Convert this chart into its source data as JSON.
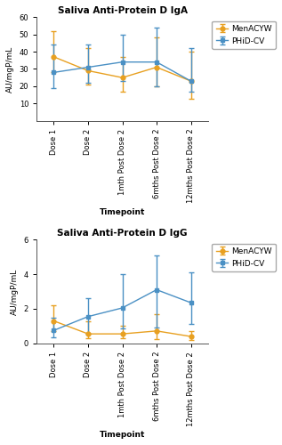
{
  "iga": {
    "title": "Saliva Anti-Protein D IgA",
    "ylabel": "AU/mgP/mL",
    "xlabel": "Timepoint",
    "ylim": [
      0,
      60
    ],
    "yticks": [
      10,
      20,
      30,
      40,
      50,
      60
    ],
    "timepoints": [
      "Dose 1",
      "Dose 2",
      "1mth Post Dose 2",
      "6mths Post Dose 2",
      "12mths Post Dose 2"
    ],
    "menacyw": {
      "mean": [
        37,
        29,
        25,
        31,
        23
      ],
      "ci_low": [
        28,
        21,
        17,
        20,
        13
      ],
      "ci_high": [
        52,
        42,
        37,
        48,
        40
      ]
    },
    "phid": {
      "mean": [
        28,
        31,
        34,
        34,
        23
      ],
      "ci_low": [
        19,
        22,
        23,
        20,
        17
      ],
      "ci_high": [
        44,
        44,
        50,
        54,
        42
      ]
    }
  },
  "igg": {
    "title": "Saliva Anti-Protein D IgG",
    "ylabel": "AU/mgP/mL",
    "xlabel": "Timepoint",
    "ylim": [
      0,
      6
    ],
    "yticks": [
      0,
      2,
      4,
      6
    ],
    "timepoints": [
      "Dose 1",
      "Dose 2",
      "1mth Post Dose 2",
      "6mths Post Dose 2",
      "12mths Post Dose 2"
    ],
    "menacyw": {
      "mean": [
        1.3,
        0.55,
        0.55,
        0.72,
        0.4
      ],
      "ci_low": [
        0.7,
        0.3,
        0.3,
        0.25,
        0.2
      ],
      "ci_high": [
        2.2,
        1.3,
        1.0,
        1.7,
        0.7
      ]
    },
    "phid": {
      "mean": [
        0.75,
        1.55,
        2.05,
        3.1,
        2.35
      ],
      "ci_low": [
        0.35,
        0.55,
        0.85,
        0.9,
        1.1
      ],
      "ci_high": [
        1.5,
        2.6,
        4.0,
        5.1,
        4.1
      ]
    }
  },
  "color_menacyw": "#E8A020",
  "color_phid": "#4A90C4",
  "marker_menacyw": "o",
  "marker_phid": "s",
  "legend_labels": [
    "MenACYW",
    "PHiD-CV"
  ],
  "background_color": "#FFFFFF",
  "title_fontsize": 7.5,
  "label_fontsize": 6.5,
  "tick_fontsize": 6,
  "legend_fontsize": 6.5,
  "linewidth": 1.0,
  "markersize": 3.5,
  "capsize": 2.5
}
